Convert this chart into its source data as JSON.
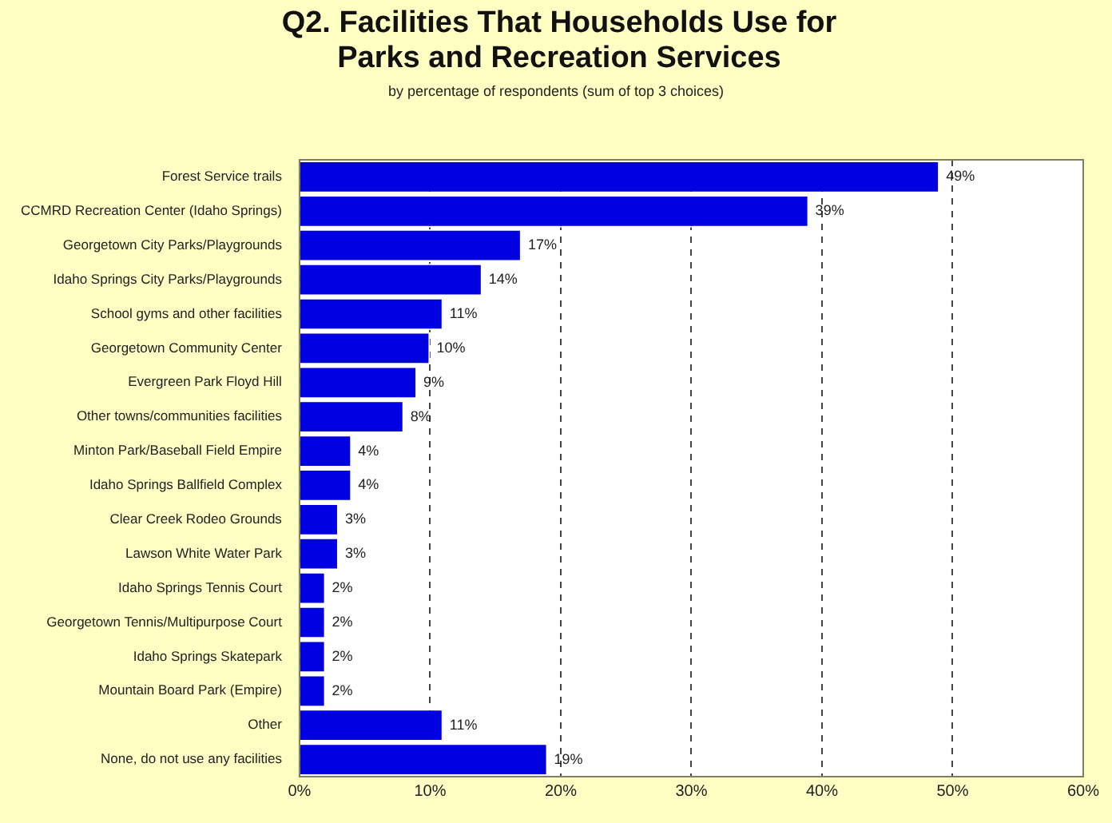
{
  "chart_data": {
    "type": "bar",
    "orientation": "horizontal",
    "title": "Q2. Facilities That Households Use for Parks and Recreation Services",
    "subtitle": "by percentage of respondents (sum of top 3 choices)",
    "categories": [
      "Forest Service trails",
      "CCMRD Recreation Center (Idaho Springs)",
      "Georgetown City Parks/Playgrounds",
      "Idaho Springs City Parks/Playgrounds",
      "School gyms and other facilities",
      "Georgetown Community Center",
      "Evergreen Park Floyd Hill",
      "Other towns/communities facilities",
      "Minton Park/Baseball Field Empire",
      "Idaho Springs Ballfield Complex",
      "Clear Creek Rodeo Grounds",
      "Lawson White Water Park",
      "Idaho Springs Tennis Court",
      "Georgetown Tennis/Multipurpose Court",
      "Idaho Springs Skatepark",
      "Mountain Board Park (Empire)",
      "Other",
      "None, do not use any facilities"
    ],
    "values": [
      49,
      39,
      17,
      14,
      11,
      10,
      9,
      8,
      4,
      4,
      3,
      3,
      2,
      2,
      2,
      2,
      11,
      19
    ],
    "value_labels": [
      "49%",
      "39%",
      "17%",
      "14%",
      "11%",
      "10%",
      "9%",
      "8%",
      "4%",
      "4%",
      "3%",
      "3%",
      "2%",
      "2%",
      "2%",
      "2%",
      "11%",
      "19%"
    ],
    "color": "#0000e0",
    "xlim": [
      0,
      60
    ],
    "xticks": [
      {
        "value": 0,
        "label": "0%"
      },
      {
        "value": 10,
        "label": "10%"
      },
      {
        "value": 20,
        "label": "20%"
      },
      {
        "value": 30,
        "label": "30%"
      },
      {
        "value": 40,
        "label": "40%"
      },
      {
        "value": 50,
        "label": "50%"
      },
      {
        "value": 60,
        "label": "60%"
      }
    ],
    "grid": "x",
    "legend": false
  }
}
